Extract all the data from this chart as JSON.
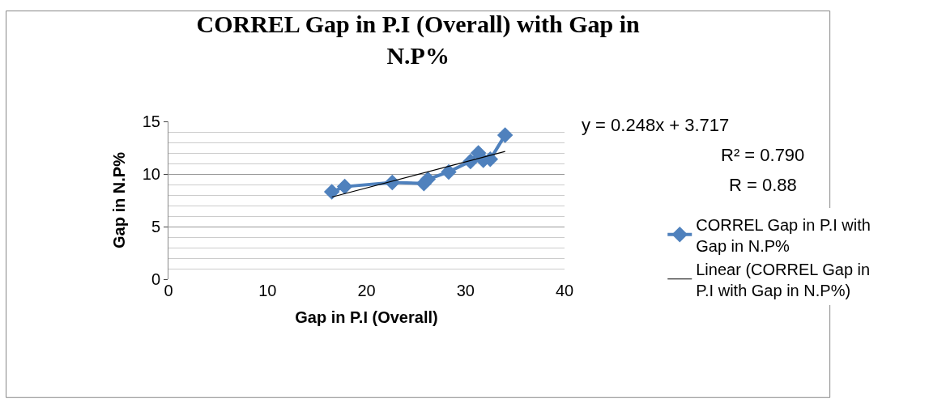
{
  "chart_data": {
    "type": "line",
    "title": "CORREL Gap in P.I (Overall) with Gap in N.P%",
    "xlabel": "Gap in P.I (Overall)",
    "ylabel": "Gap in N.P%",
    "series": [
      {
        "name": "CORREL Gap in P.I with Gap in N.P%",
        "color": "#4f81bd",
        "marker": "diamond",
        "x": [
          16.5,
          17.8,
          22.6,
          25.8,
          26.2,
          28.3,
          30.5,
          31.3,
          31.8,
          32.5,
          34.0
        ],
        "values": [
          8.3,
          8.8,
          9.2,
          9.1,
          9.5,
          10.2,
          11.2,
          12.0,
          11.3,
          11.4,
          13.7
        ]
      },
      {
        "name": "Linear (CORREL Gap in P.I with Gap in N.P%)",
        "color": "#000000",
        "marker": "none",
        "x": [
          16.5,
          34.0
        ],
        "values": [
          7.81,
          12.15
        ]
      }
    ],
    "annotations": [
      "y = 0.248x + 3.717",
      "R² = 0.790",
      "R = 0.88"
    ],
    "xlim": [
      0,
      40
    ],
    "xticks": [
      0,
      10,
      20,
      30,
      40
    ],
    "ylim": [
      0,
      15
    ],
    "yticks": [
      0,
      5,
      10,
      15
    ],
    "grid": "y",
    "legend": "right"
  }
}
